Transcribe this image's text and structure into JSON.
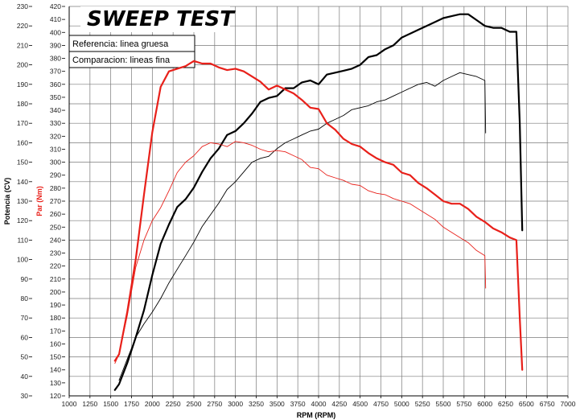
{
  "chart_data": {
    "type": "line",
    "title": "SWEEP TEST",
    "xlabel": "RPM (RPM)",
    "ylabel_left": "Potencia (CV)",
    "ylabel_right": "Par (Nm)",
    "xlim": [
      1000,
      7000
    ],
    "ylim_left": [
      30,
      230
    ],
    "ylim_right": [
      120,
      420
    ],
    "x_ticks": [
      "1000",
      "1250",
      "1500",
      "1750",
      "2000",
      "2250",
      "2500",
      "2750",
      "3000",
      "3250",
      "3500",
      "3750",
      "4000",
      "4250",
      "4500",
      "4750",
      "5000",
      "5250",
      "5500",
      "5750",
      "6000",
      "6250",
      "6500",
      "6750",
      "7000"
    ],
    "y_left_ticks": [
      "30",
      "40",
      "50",
      "60",
      "70",
      "80",
      "90",
      "100",
      "110",
      "120",
      "130",
      "140",
      "150",
      "160",
      "170",
      "180",
      "190",
      "200",
      "210",
      "220",
      "230"
    ],
    "y_right_ticks": [
      "120",
      "130",
      "140",
      "150",
      "160",
      "170",
      "180",
      "190",
      "200",
      "210",
      "220",
      "230",
      "240",
      "250",
      "260",
      "270",
      "280",
      "290",
      "300",
      "310",
      "320",
      "330",
      "340",
      "350",
      "360",
      "370",
      "380",
      "390",
      "400",
      "410",
      "420"
    ],
    "grid": true,
    "legend": [
      "Referencia: linea gruesa",
      "Comparacion: lineas fina"
    ],
    "colors": {
      "power": "#000000",
      "torque": "#e8201a"
    },
    "series": [
      {
        "name": "Potencia - linea gruesa",
        "axis": "left",
        "color": "#000000",
        "thick": true,
        "x": [
          1550,
          1600,
          1700,
          1800,
          1900,
          2000,
          2100,
          2200,
          2300,
          2400,
          2500,
          2600,
          2700,
          2800,
          2900,
          3000,
          3100,
          3200,
          3300,
          3400,
          3500,
          3600,
          3700,
          3800,
          3900,
          4000,
          4100,
          4200,
          4300,
          4400,
          4500,
          4600,
          4700,
          4800,
          4900,
          5000,
          5100,
          5200,
          5300,
          5400,
          5500,
          5600,
          5700,
          5800,
          5900,
          6000,
          6100,
          6200,
          6300,
          6380,
          6420,
          6450
        ],
        "y": [
          33,
          36,
          47,
          60,
          74,
          92,
          108,
          118,
          127,
          131,
          137,
          145,
          152,
          157,
          164,
          166,
          170,
          175,
          181,
          183,
          184,
          188,
          188,
          191,
          192,
          190,
          195,
          196,
          197,
          198,
          200,
          204,
          205,
          208,
          210,
          214,
          216,
          218,
          220,
          222,
          224,
          225,
          226,
          226,
          223,
          220,
          219,
          219,
          217,
          217,
          170,
          115
        ]
      },
      {
        "name": "Potencia - linea fina",
        "axis": "left",
        "color": "#000000",
        "thick": false,
        "x": [
          1600,
          1700,
          1800,
          1900,
          2000,
          2100,
          2200,
          2300,
          2400,
          2500,
          2600,
          2700,
          2800,
          2900,
          3000,
          3100,
          3200,
          3300,
          3400,
          3500,
          3600,
          3700,
          3800,
          3900,
          4000,
          4100,
          4200,
          4300,
          4400,
          4500,
          4600,
          4700,
          4800,
          4900,
          5000,
          5100,
          5200,
          5300,
          5400,
          5500,
          5600,
          5700,
          5800,
          5900,
          6000,
          6010
        ],
        "y": [
          38,
          49,
          60,
          67,
          73,
          80,
          88,
          95,
          102,
          109,
          117,
          123,
          129,
          136,
          140,
          145,
          150,
          152,
          153,
          157,
          160,
          162,
          164,
          166,
          167,
          170,
          172,
          174,
          177,
          178,
          179,
          181,
          182,
          184,
          186,
          188,
          190,
          191,
          189,
          192,
          194,
          196,
          195,
          194,
          192,
          165
        ]
      },
      {
        "name": "Par - linea gruesa",
        "axis": "right",
        "color": "#e8201a",
        "thick": true,
        "x": [
          1550,
          1600,
          1700,
          1800,
          1900,
          2000,
          2100,
          2200,
          2300,
          2400,
          2500,
          2600,
          2700,
          2800,
          2900,
          3000,
          3100,
          3200,
          3300,
          3400,
          3500,
          3600,
          3700,
          3800,
          3900,
          4000,
          4100,
          4200,
          4300,
          4400,
          4500,
          4600,
          4700,
          4800,
          4900,
          5000,
          5100,
          5200,
          5300,
          5400,
          5500,
          5600,
          5700,
          5800,
          5900,
          6000,
          6100,
          6200,
          6300,
          6380,
          6420,
          6450
        ],
        "y": [
          147,
          152,
          185,
          225,
          275,
          323,
          358,
          370,
          372,
          374,
          378,
          376,
          376,
          373,
          371,
          372,
          370,
          366,
          362,
          356,
          359,
          356,
          353,
          348,
          342,
          341,
          330,
          325,
          318,
          314,
          312,
          307,
          303,
          300,
          298,
          292,
          290,
          284,
          280,
          275,
          270,
          268,
          268,
          264,
          258,
          254,
          249,
          246,
          242,
          240,
          180,
          140
        ]
      },
      {
        "name": "Par - linea fina",
        "axis": "right",
        "color": "#e8201a",
        "thick": false,
        "x": [
          1550,
          1600,
          1700,
          1800,
          1900,
          2000,
          2100,
          2200,
          2300,
          2400,
          2500,
          2600,
          2700,
          2800,
          2900,
          3000,
          3100,
          3200,
          3300,
          3400,
          3500,
          3600,
          3700,
          3800,
          3900,
          4000,
          4100,
          4200,
          4300,
          4400,
          4500,
          4600,
          4700,
          4800,
          4900,
          5000,
          5100,
          5200,
          5300,
          5400,
          5500,
          5600,
          5700,
          5800,
          5900,
          6000,
          6010
        ],
        "y": [
          145,
          152,
          182,
          219,
          240,
          255,
          265,
          278,
          292,
          300,
          305,
          312,
          315,
          314,
          312,
          316,
          315,
          313,
          310,
          308,
          309,
          308,
          305,
          302,
          296,
          295,
          290,
          288,
          286,
          283,
          282,
          278,
          276,
          275,
          272,
          270,
          268,
          264,
          260,
          256,
          250,
          246,
          242,
          238,
          232,
          228,
          203
        ]
      }
    ]
  }
}
